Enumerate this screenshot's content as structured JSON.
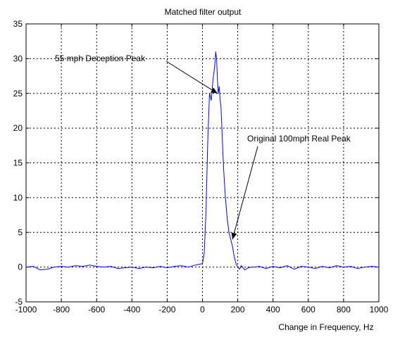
{
  "chart_data": {
    "type": "line",
    "title": "Matched filter output",
    "xlabel": "Change in Frequency, Hz",
    "ylabel": "",
    "xlim": [
      -1000,
      1000
    ],
    "ylim": [
      -5,
      35
    ],
    "xticks": [
      -1000,
      -800,
      -600,
      -400,
      -200,
      0,
      200,
      400,
      600,
      800,
      1000
    ],
    "yticks": [
      -5,
      0,
      5,
      10,
      15,
      20,
      25,
      30,
      35
    ],
    "grid": true,
    "line_color": "#0000ff",
    "series": [
      {
        "x": [
          -1000,
          -960,
          -920,
          -880,
          -840,
          -800,
          -760,
          -720,
          -680,
          -640,
          -600,
          -560,
          -520,
          -480,
          -440,
          -400,
          -360,
          -320,
          -280,
          -240,
          -200,
          -160,
          -120,
          -80,
          -40,
          0,
          10,
          20,
          30,
          40,
          50,
          60,
          70,
          75,
          80,
          85,
          90,
          95,
          100,
          105,
          110,
          115,
          120,
          130,
          140,
          150,
          160,
          170,
          180,
          190,
          200,
          210,
          220,
          240,
          260,
          280,
          300,
          320,
          360,
          400,
          440,
          480,
          520,
          560,
          600,
          640,
          680,
          720,
          760,
          800,
          840,
          880,
          920,
          960,
          1000
        ],
        "y": [
          0.0,
          0.1,
          -0.4,
          -0.3,
          0.0,
          0.1,
          0.0,
          0.2,
          0.1,
          0.3,
          0.1,
          0.0,
          0.1,
          -0.2,
          -0.1,
          0.0,
          -0.2,
          0.0,
          -0.1,
          0.1,
          -0.1,
          0.1,
          0.2,
          0.0,
          0.3,
          0.5,
          2.0,
          8.0,
          18.0,
          25.0,
          24.0,
          27.0,
          29.0,
          31.0,
          30.0,
          27.0,
          25.0,
          26.0,
          24.0,
          23.0,
          20.0,
          17.0,
          14.0,
          10.0,
          7.0,
          5.0,
          4.0,
          3.0,
          1.5,
          0.5,
          0.0,
          -0.3,
          0.2,
          -0.4,
          -0.1,
          0.0,
          0.0,
          0.1,
          -0.2,
          0.1,
          -0.1,
          0.2,
          -0.3,
          0.1,
          0.0,
          -0.2,
          0.1,
          -0.1,
          0.2,
          0.0,
          0.1,
          -0.2,
          0.0,
          0.1,
          0.0
        ]
      }
    ],
    "annotations": [
      {
        "text": "55 mph Deception Peak",
        "x": 85,
        "y": 25
      },
      {
        "text": "Original 100mph Real Peak",
        "x": 170,
        "y": 4
      }
    ]
  }
}
